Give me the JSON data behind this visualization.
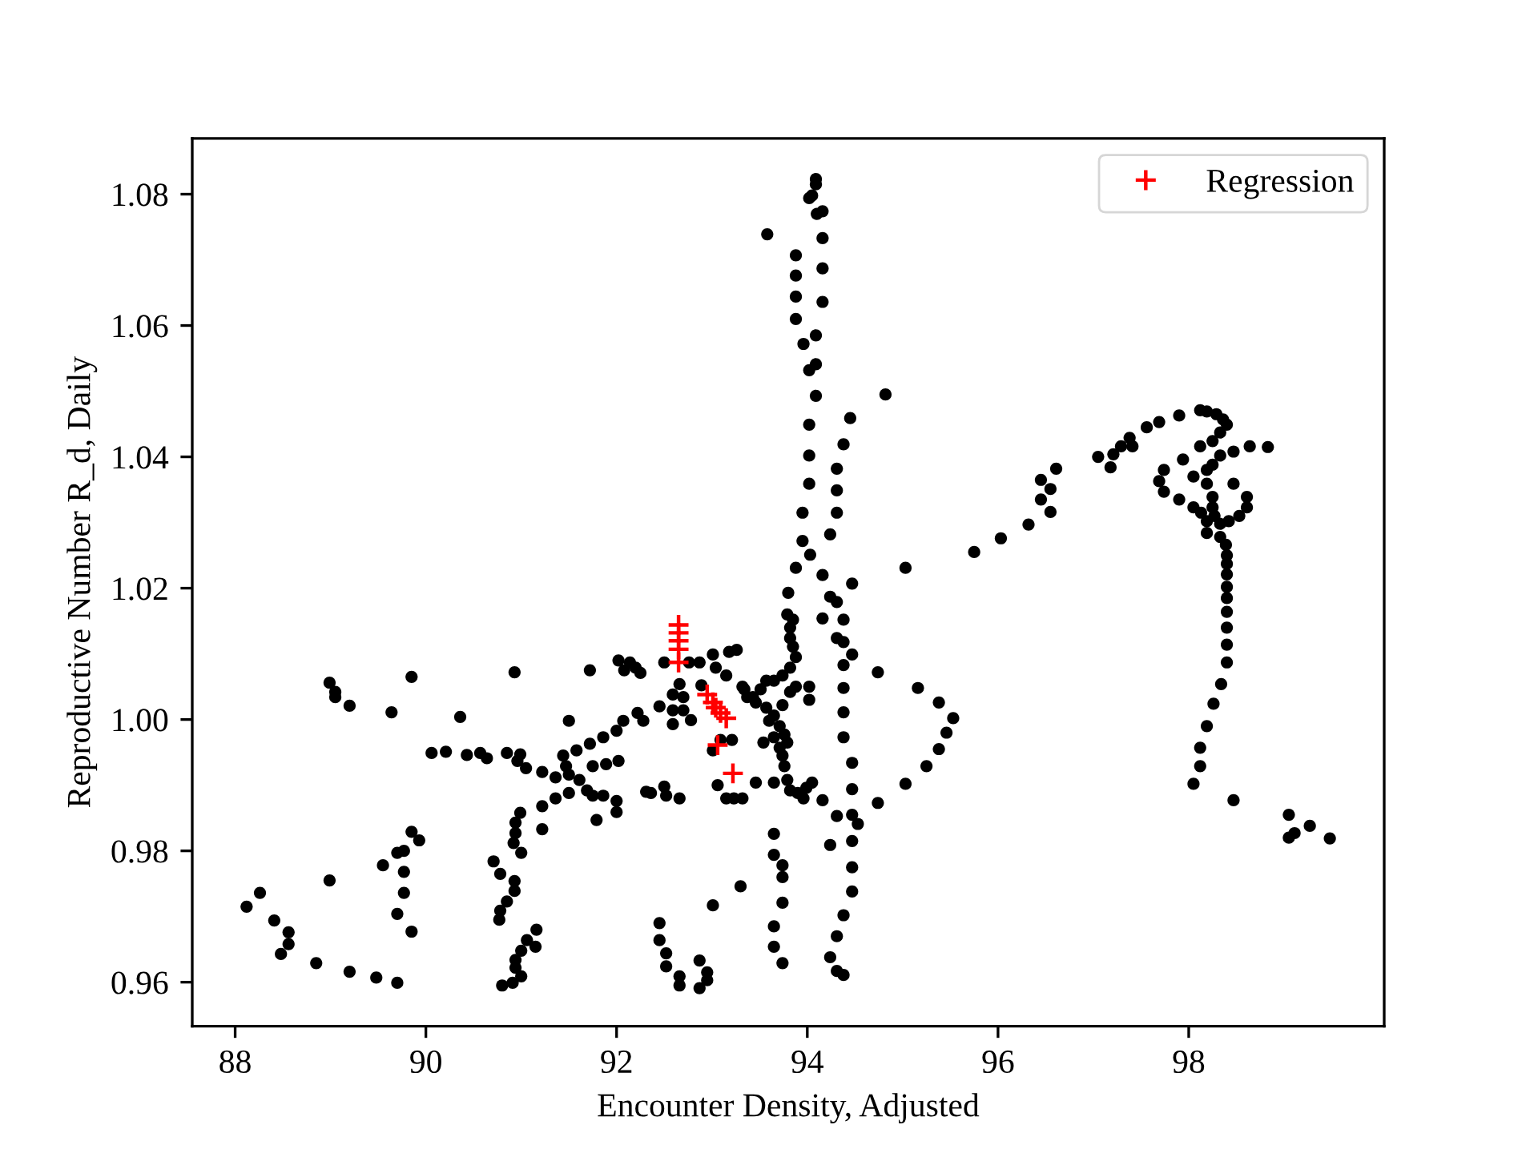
{
  "chart_data": {
    "type": "scatter",
    "xlabel": "Encounter Density, Adjusted",
    "ylabel": "Reproductive Number R_d, Daily",
    "xlim": [
      87.55,
      100.05
    ],
    "ylim": [
      0.9533,
      1.0885
    ],
    "xticks": [
      88,
      90,
      92,
      94,
      96,
      98
    ],
    "yticks": [
      0.96,
      0.98,
      {
        "value": 1.0,
        "label": "1.00"
      },
      1.02,
      1.04,
      1.06,
      1.08
    ],
    "legend": "top right",
    "series": [
      {
        "color": "#000000",
        "marker": "circle",
        "x": [
          88.99,
          89.05,
          89.05,
          89.2,
          89.85,
          89.64,
          90.93,
          90.36,
          90.06,
          90.21,
          90.43,
          90.57,
          90.64,
          90.85,
          90.99,
          90.96,
          91.05,
          91.22,
          91.22,
          91.22,
          90.99,
          90.94,
          90.94,
          90.92,
          91.0,
          90.71,
          90.78,
          90.93,
          90.93,
          90.85,
          90.78,
          90.77,
          91.16,
          91.06,
          91.15,
          91.0,
          90.94,
          90.94,
          91.0,
          90.91,
          90.8,
          89.85,
          89.93,
          89.77,
          89.7,
          89.55,
          89.77,
          89.77,
          89.7,
          89.85,
          88.99,
          88.26,
          88.12,
          88.41,
          88.56,
          88.56,
          88.48,
          88.85,
          89.2,
          89.48,
          89.7,
          91.72,
          92.02,
          92.14,
          92.2,
          92.25,
          92.08,
          92.5,
          92.66,
          92.59,
          92.7,
          92.59,
          92.7,
          92.59,
          92.78,
          92.45,
          92.22,
          92.28,
          92.07,
          92.0,
          91.86,
          91.72,
          91.58,
          91.5,
          91.44,
          91.47,
          91.36,
          91.5,
          91.61,
          91.69,
          91.75,
          91.75,
          91.89,
          92.02,
          91.5,
          91.36,
          91.86,
          92.0,
          92.0,
          91.79,
          92.31,
          92.36,
          92.5,
          92.52,
          92.66,
          93.06,
          93.15,
          93.23,
          93.32,
          93.46,
          93.01,
          93.09,
          93.21,
          92.89,
          92.76,
          92.87,
          93.01,
          93.18,
          93.26,
          93.04,
          93.15,
          93.32,
          93.43,
          93.51,
          93.3,
          93.01,
          92.45,
          92.45,
          92.52,
          92.52,
          92.66,
          92.66,
          92.87,
          92.95,
          92.95,
          92.87,
          95.03,
          94.74,
          95.16,
          95.38,
          95.53,
          95.46,
          95.38,
          95.25,
          95.03,
          94.74,
          94.16,
          94.31,
          94.47,
          94.53,
          94.24,
          94.47,
          94.47,
          94.47,
          94.38,
          94.31,
          94.24,
          94.31,
          94.38,
          94.38,
          94.31,
          94.38,
          94.47,
          94.38,
          94.38,
          94.38,
          94.38,
          94.47,
          94.47,
          94.16,
          94.03,
          93.88,
          93.8,
          94.47,
          94.24,
          94.31,
          94.16,
          93.79,
          93.85,
          93.82,
          93.82,
          93.85,
          93.88,
          93.82,
          93.74,
          93.65,
          93.57,
          93.34,
          93.37,
          93.46,
          93.57,
          93.65,
          93.74,
          93.82,
          93.88,
          94.02,
          94.02,
          93.6,
          93.71,
          93.76,
          93.65,
          93.54,
          93.71,
          93.79,
          93.74,
          93.76,
          93.79,
          93.82,
          93.9,
          93.99,
          94.05,
          93.96,
          93.65,
          93.65,
          93.65,
          93.74,
          93.74,
          93.74,
          93.65,
          93.65,
          93.74,
          94.09,
          94.09,
          94.05,
          94.02,
          94.1,
          94.16,
          93.58,
          94.16,
          93.88,
          93.88,
          93.88,
          93.88,
          94.16,
          94.16,
          94.09,
          93.96,
          94.09,
          94.02,
          94.09,
          94.82,
          94.02,
          94.02,
          94.02,
          93.95,
          93.95,
          94.45,
          94.38,
          94.31,
          94.31,
          94.31,
          94.24,
          95.75,
          96.03,
          96.32,
          96.45,
          96.55,
          96.45,
          96.55,
          96.61,
          97.05,
          97.18,
          97.21,
          97.29,
          97.38,
          97.41,
          97.56,
          97.69,
          97.9,
          98.12,
          98.19,
          98.29,
          98.36,
          98.4,
          98.33,
          98.25,
          98.12,
          97.74,
          97.69,
          97.74,
          97.9,
          97.94,
          98.05,
          98.19,
          98.25,
          98.33,
          98.47,
          98.64,
          98.83,
          98.19,
          98.25,
          98.47,
          98.61,
          98.61,
          98.53,
          98.42,
          98.33,
          98.05,
          98.13,
          98.19,
          98.19,
          98.25,
          98.27,
          98.33,
          98.39,
          98.4,
          98.4,
          98.4,
          98.4,
          98.4,
          98.4,
          98.4,
          98.4,
          98.4,
          98.34,
          98.26,
          98.19,
          98.12,
          98.12,
          98.05,
          98.47,
          99.05,
          99.11,
          99.05,
          99.27,
          99.48
        ],
        "values": [
          1.0056,
          1.0042,
          1.0034,
          1.0021,
          1.0065,
          1.0011,
          1.0072,
          1.0004,
          0.9949,
          0.9951,
          0.9946,
          0.9949,
          0.9941,
          0.9949,
          0.9947,
          0.9937,
          0.9926,
          0.992,
          0.9868,
          0.9833,
          0.9858,
          0.9843,
          0.9827,
          0.9812,
          0.9797,
          0.9784,
          0.9765,
          0.9754,
          0.9739,
          0.9723,
          0.9709,
          0.9695,
          0.968,
          0.9664,
          0.9654,
          0.9648,
          0.9634,
          0.9622,
          0.9609,
          0.9599,
          0.9595,
          0.9829,
          0.9816,
          0.98,
          0.9797,
          0.9778,
          0.9768,
          0.9736,
          0.9704,
          0.9677,
          0.9755,
          0.9736,
          0.9715,
          0.9694,
          0.9676,
          0.9658,
          0.9643,
          0.9629,
          0.9616,
          0.9607,
          0.9599,
          1.0075,
          1.009,
          1.0087,
          1.0079,
          1.0071,
          1.0075,
          1.0087,
          1.0054,
          1.0038,
          1.0034,
          1.0014,
          1.0014,
          0.9993,
          0.9999,
          1.002,
          1.001,
          0.9998,
          0.9998,
          0.9983,
          0.9973,
          0.9963,
          0.9953,
          0.9998,
          0.9945,
          0.9929,
          0.9912,
          0.9916,
          0.9908,
          0.9892,
          0.9884,
          0.9929,
          0.9932,
          0.9937,
          0.9888,
          0.988,
          0.9884,
          0.9876,
          0.9859,
          0.9847,
          0.989,
          0.9888,
          0.9898,
          0.9884,
          0.988,
          0.99,
          0.988,
          0.988,
          0.988,
          0.9904,
          0.9953,
          0.9969,
          0.9969,
          1.0052,
          1.0087,
          1.0087,
          1.0099,
          1.0103,
          1.0106,
          1.0079,
          1.0067,
          1.005,
          1.0034,
          1.0046,
          0.9746,
          0.9717,
          0.969,
          0.9664,
          0.9644,
          0.9624,
          0.9609,
          0.9595,
          0.9633,
          0.9615,
          0.9603,
          0.9591,
          1.0231,
          1.0072,
          1.0048,
          1.0026,
          1.0002,
          0.998,
          0.9955,
          0.9929,
          0.9902,
          0.9873,
          0.9877,
          0.9853,
          0.9855,
          0.9841,
          0.9809,
          0.9815,
          0.9775,
          0.9738,
          0.9702,
          0.967,
          0.9638,
          0.9617,
          0.9611,
          1.0152,
          1.0124,
          1.0118,
          1.0099,
          1.0083,
          1.0048,
          1.0011,
          0.9973,
          0.9934,
          0.9894,
          1.022,
          1.0251,
          1.0231,
          1.0193,
          1.0207,
          1.0187,
          1.0179,
          1.0154,
          1.016,
          1.0152,
          1.014,
          1.0124,
          1.0111,
          1.0095,
          1.0079,
          1.0067,
          1.0059,
          1.0059,
          1.0046,
          1.0034,
          1.0026,
          1.0018,
          1.0006,
          1.0022,
          1.0042,
          1.005,
          1.005,
          1.003,
          0.9998,
          0.999,
          0.9977,
          0.9973,
          0.9965,
          0.9957,
          0.9965,
          0.9945,
          0.9929,
          0.9908,
          0.9892,
          0.9888,
          0.9896,
          0.9904,
          0.988,
          0.9904,
          0.9826,
          0.9794,
          0.9778,
          0.976,
          0.9721,
          0.9685,
          0.9654,
          0.9629,
          1.0823,
          1.0815,
          1.0798,
          1.0794,
          1.077,
          1.0774,
          1.0739,
          1.0733,
          1.0707,
          1.0676,
          1.0644,
          1.061,
          1.0687,
          1.0636,
          1.0585,
          1.0572,
          1.0541,
          1.0532,
          1.0493,
          1.0495,
          1.0449,
          1.0402,
          1.0359,
          1.0315,
          1.0272,
          1.0459,
          1.0419,
          1.0382,
          1.0349,
          1.0315,
          1.0282,
          1.0255,
          1.0276,
          1.0297,
          1.0365,
          1.0351,
          1.0335,
          1.0316,
          1.0382,
          1.04,
          1.0384,
          1.0404,
          1.0416,
          1.0429,
          1.0416,
          1.0445,
          1.0453,
          1.0463,
          1.0471,
          1.0469,
          1.0465,
          1.0457,
          1.0449,
          1.0437,
          1.0424,
          1.0416,
          1.038,
          1.0363,
          1.0347,
          1.0335,
          1.0396,
          1.037,
          1.038,
          1.0388,
          1.0402,
          1.0408,
          1.0416,
          1.0415,
          1.0359,
          1.0339,
          1.0359,
          1.0339,
          1.0323,
          1.031,
          1.0302,
          1.0298,
          1.0323,
          1.0315,
          1.0302,
          1.0284,
          1.0323,
          1.031,
          1.0278,
          1.0266,
          1.025,
          1.0237,
          1.0221,
          1.0202,
          1.0185,
          1.0164,
          1.014,
          1.0114,
          1.0087,
          1.0054,
          1.0024,
          0.999,
          0.9957,
          0.9929,
          0.9902,
          0.9877,
          0.9855,
          0.9827,
          0.982,
          0.9838,
          0.9819
        ]
      },
      {
        "name": "Regression",
        "color": "#ff0000",
        "marker": "cross",
        "x": [
          92.65,
          92.65,
          92.65,
          92.65,
          92.65,
          92.95,
          93.01,
          93.04,
          93.09,
          93.15,
          93.06,
          93.22
        ],
        "values": [
          1.0144,
          1.0132,
          1.012,
          1.0107,
          1.0087,
          1.0038,
          1.0026,
          1.0018,
          1.001,
          1.0002,
          0.9961,
          0.9918
        ]
      }
    ]
  }
}
